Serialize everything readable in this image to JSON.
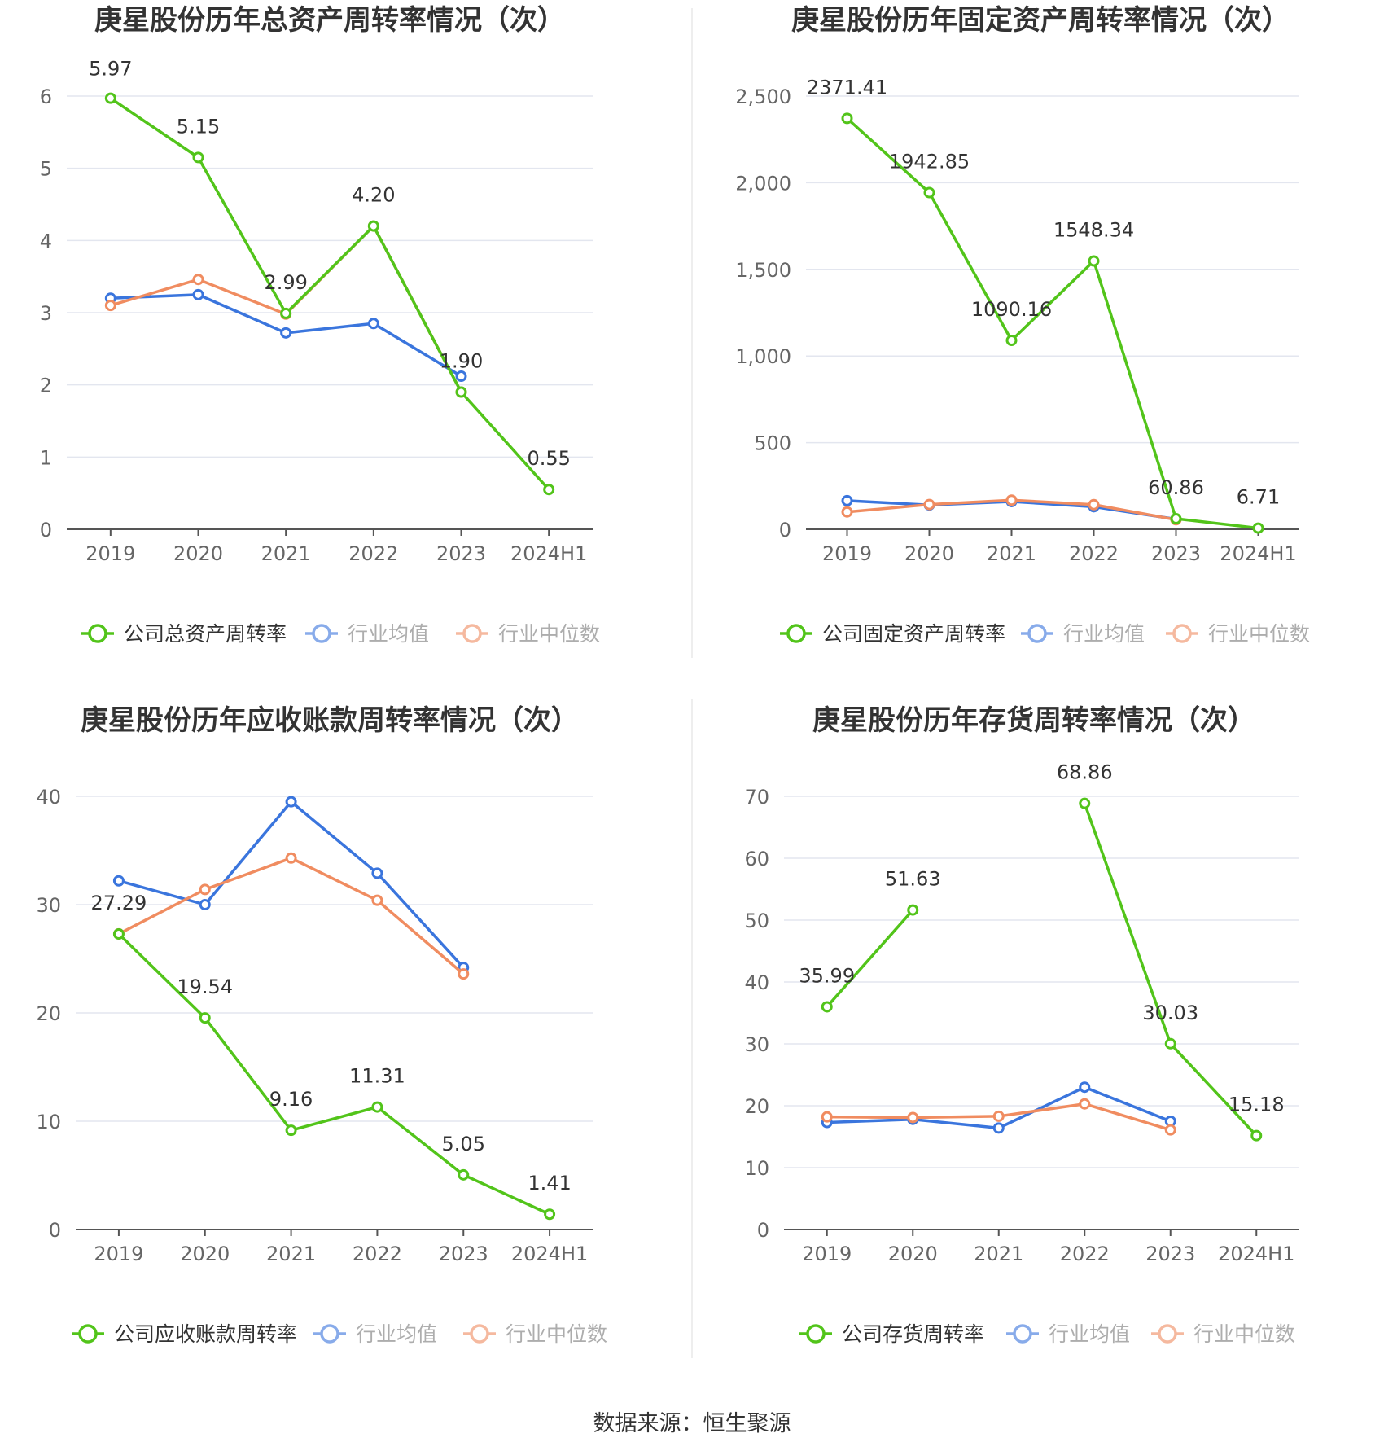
{
  "source_text": "数据来源：恒生聚源",
  "colors": {
    "company": "#52c41a",
    "avg": "#3a75dd",
    "median": "#f08c60",
    "grid": "#e3e6ef",
    "axis": "#666666",
    "label": "#333333"
  },
  "chart_data": [
    {
      "type": "line",
      "title": "庚星股份历年总资产周转率情况（次）",
      "categories": [
        "2019",
        "2020",
        "2021",
        "2022",
        "2023",
        "2024H1"
      ],
      "ylim": [
        0,
        6
      ],
      "yticks": [
        0,
        1,
        2,
        3,
        4,
        5,
        6
      ],
      "yticklabels": [
        "0",
        "1",
        "2",
        "3",
        "4",
        "5",
        "6"
      ],
      "series": [
        {
          "name": "公司总资产周转率",
          "values": [
            5.97,
            5.15,
            2.99,
            4.2,
            1.9,
            0.55
          ],
          "labels": [
            "5.97",
            "5.15",
            "2.99",
            "4.20",
            "1.90",
            "0.55"
          ]
        },
        {
          "name": "行业均值",
          "values": [
            3.2,
            3.25,
            2.72,
            2.85,
            2.12,
            null
          ]
        },
        {
          "name": "行业中位数",
          "values": [
            3.1,
            3.46,
            2.98,
            4.2,
            1.9,
            null
          ]
        }
      ]
    },
    {
      "type": "line",
      "title": "庚星股份历年固定资产周转率情况（次）",
      "categories": [
        "2019",
        "2020",
        "2021",
        "2022",
        "2023",
        "2024H1"
      ],
      "ylim": [
        0,
        2500
      ],
      "yticks": [
        0,
        500,
        1000,
        1500,
        2000,
        2500
      ],
      "yticklabels": [
        "0",
        "500",
        "1,000",
        "1,500",
        "2,000",
        "2,500"
      ],
      "series": [
        {
          "name": "公司固定资产周转率",
          "values": [
            2371.41,
            1942.85,
            1090.16,
            1548.34,
            60.86,
            6.71
          ],
          "labels": [
            "2371.41",
            "1942.85",
            "1090.16",
            "1548.34",
            "60.86",
            "6.71"
          ]
        },
        {
          "name": "行业均值",
          "values": [
            165,
            140,
            160,
            130,
            58,
            null
          ]
        },
        {
          "name": "行业中位数",
          "values": [
            100,
            143,
            168,
            142,
            55,
            null
          ]
        }
      ]
    },
    {
      "type": "line",
      "title": "庚星股份历年应收账款周转率情况（次）",
      "categories": [
        "2019",
        "2020",
        "2021",
        "2022",
        "2023",
        "2024H1"
      ],
      "ylim": [
        0,
        40
      ],
      "yticks": [
        0,
        10,
        20,
        30,
        40
      ],
      "yticklabels": [
        "0",
        "10",
        "20",
        "30",
        "40"
      ],
      "series": [
        {
          "name": "公司应收账款周转率",
          "values": [
            27.29,
            19.54,
            9.16,
            11.31,
            5.05,
            1.41
          ],
          "labels": [
            "27.29",
            "19.54",
            "9.16",
            "11.31",
            "5.05",
            "1.41"
          ]
        },
        {
          "name": "行业均值",
          "values": [
            32.2,
            30.0,
            39.5,
            32.9,
            24.2,
            null
          ]
        },
        {
          "name": "行业中位数",
          "values": [
            27.3,
            31.4,
            34.3,
            30.4,
            23.6,
            null
          ]
        }
      ]
    },
    {
      "type": "line",
      "title": "庚星股份历年存货周转率情况（次）",
      "categories": [
        "2019",
        "2020",
        "2021",
        "2022",
        "2023",
        "2024H1"
      ],
      "ylim": [
        0,
        70
      ],
      "yticks": [
        0,
        10,
        20,
        30,
        40,
        50,
        60,
        70
      ],
      "yticklabels": [
        "0",
        "10",
        "20",
        "30",
        "40",
        "50",
        "60",
        "70"
      ],
      "series": [
        {
          "name": "公司存货周转率",
          "values": [
            35.99,
            51.63,
            null,
            68.86,
            30.03,
            15.18
          ],
          "labels": [
            "35.99",
            "51.63",
            null,
            "68.86",
            "30.03",
            "15.18"
          ]
        },
        {
          "name": "行业均值",
          "values": [
            17.3,
            17.8,
            16.4,
            23.0,
            17.5,
            null
          ]
        },
        {
          "name": "行业中位数",
          "values": [
            18.2,
            18.1,
            18.3,
            20.3,
            16.1,
            null
          ]
        }
      ]
    }
  ]
}
